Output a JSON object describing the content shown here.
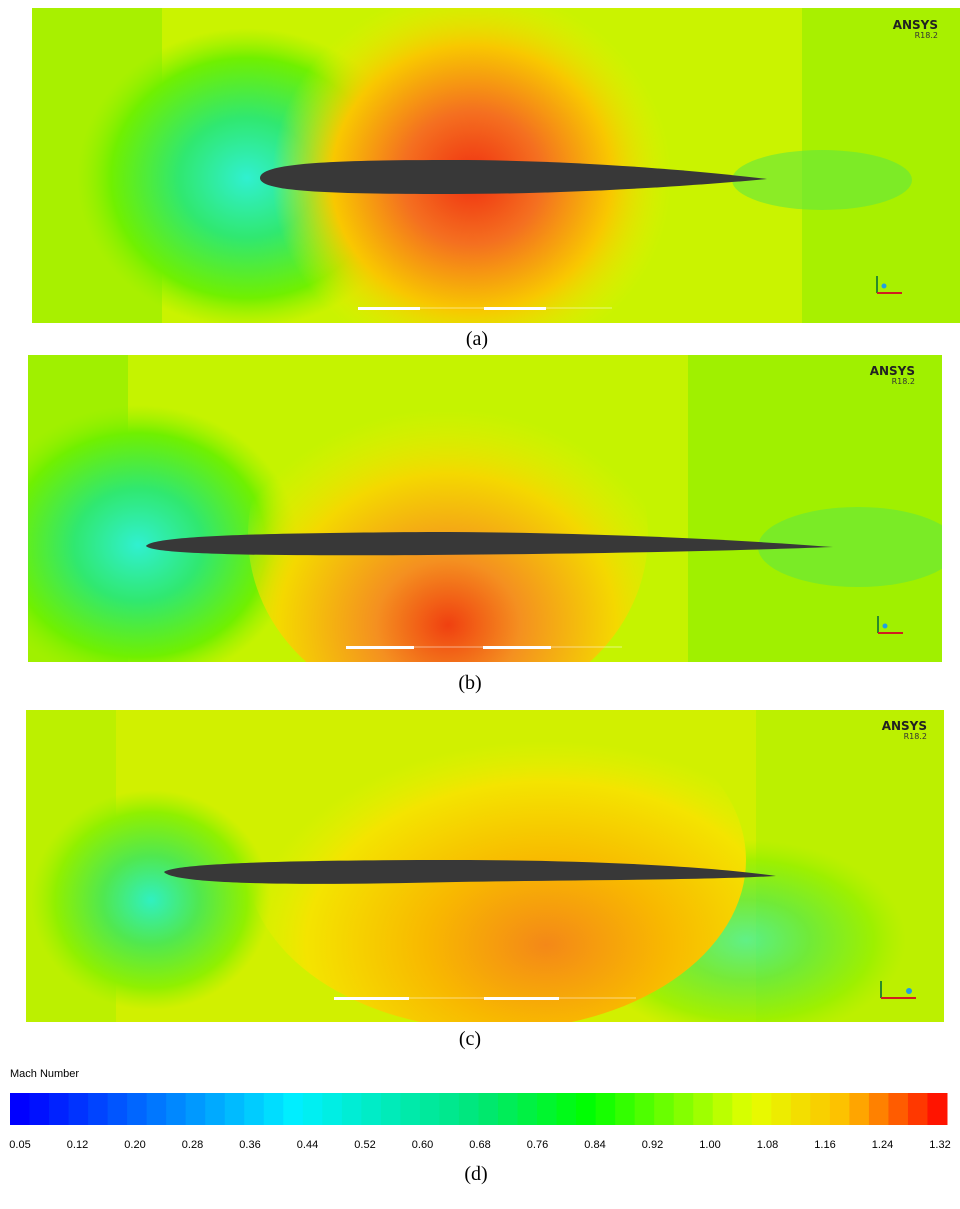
{
  "panels": [
    {
      "caption": "(a)",
      "logo": "ANSYS",
      "version": "R18.2"
    },
    {
      "caption": "(b)",
      "logo": "ANSYS",
      "version": "R18.2"
    },
    {
      "caption": "(c)",
      "logo": "ANSYS",
      "version": "R18.2"
    }
  ],
  "colorbar": {
    "title": "Mach Number",
    "ticks": [
      "0.05",
      "0.12",
      "0.20",
      "0.28",
      "0.36",
      "0.44",
      "0.52",
      "0.60",
      "0.68",
      "0.76",
      "0.84",
      "0.92",
      "1.00",
      "1.08",
      "1.16",
      "1.24",
      "1.32"
    ],
    "caption": "(d)"
  }
}
